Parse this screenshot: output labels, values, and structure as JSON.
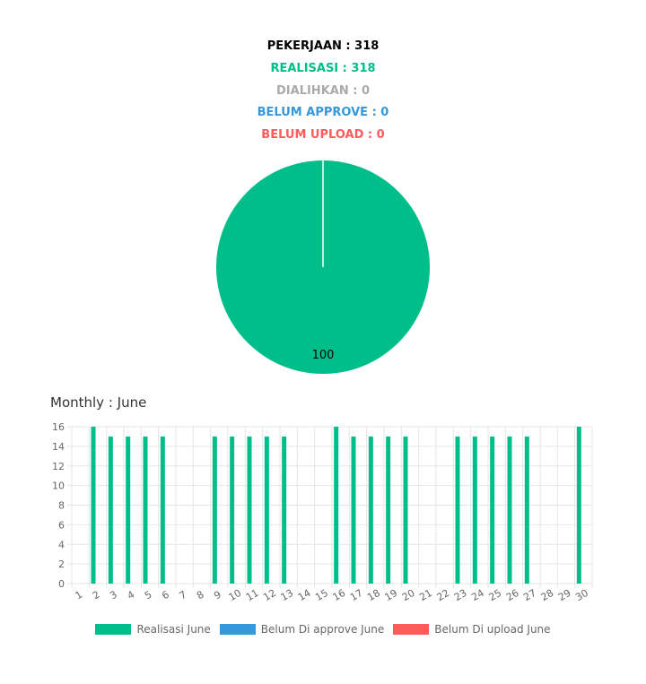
{
  "summary": {
    "pekerjaan": "PEKERJAAN : 318",
    "realisasi": "REALISASI : 318",
    "dialihkan": "DIALIHKAN : 0",
    "belum_approve": "BELUM APPROVE : 0",
    "belum_upload": "BELUM UPLOAD : 0"
  },
  "colors": {
    "pekerjaan": "#000000",
    "realisasi": "#00be8a",
    "dialihkan": "#aaaaaa",
    "belum_approve": "#3498db",
    "belum_upload": "#ff5b5b",
    "grid": "#e6e6e6",
    "tick": "#666666"
  },
  "monthly": {
    "title": "Monthly : June"
  },
  "chart_data": [
    {
      "type": "pie",
      "labels": [
        "Realisasi",
        "Belum Di approve",
        "Belum Di upload"
      ],
      "values": [
        100,
        0,
        0
      ],
      "data_labels": [
        "100"
      ],
      "colors": [
        "#00be8a",
        "#3498db",
        "#ff5b5b"
      ]
    },
    {
      "type": "bar",
      "title": "Monthly : June",
      "categories": [
        "1",
        "2",
        "3",
        "4",
        "5",
        "6",
        "7",
        "8",
        "9",
        "10",
        "11",
        "12",
        "13",
        "14",
        "15",
        "16",
        "17",
        "18",
        "19",
        "20",
        "21",
        "22",
        "23",
        "24",
        "25",
        "26",
        "27",
        "28",
        "29",
        "30"
      ],
      "series": [
        {
          "name": "Realisasi June",
          "color": "#00be8a",
          "values": [
            0,
            16,
            15,
            15,
            15,
            15,
            0,
            0,
            15,
            15,
            15,
            15,
            15,
            0,
            0,
            16,
            15,
            15,
            15,
            15,
            0,
            0,
            15,
            15,
            15,
            15,
            15,
            0,
            0,
            16
          ]
        },
        {
          "name": "Belum Di approve June",
          "color": "#3498db",
          "values": [
            0,
            0,
            0,
            0,
            0,
            0,
            0,
            0,
            0,
            0,
            0,
            0,
            0,
            0,
            0,
            0,
            0,
            0,
            0,
            0,
            0,
            0,
            0,
            0,
            0,
            0,
            0,
            0,
            0,
            0
          ]
        },
        {
          "name": "Belum Di upload June",
          "color": "#ff5b5b",
          "values": [
            0,
            0,
            0,
            0,
            0,
            0,
            0,
            0,
            0,
            0,
            0,
            0,
            0,
            0,
            0,
            0,
            0,
            0,
            0,
            0,
            0,
            0,
            0,
            0,
            0,
            0,
            0,
            0,
            0,
            0
          ]
        }
      ],
      "ylim": [
        0,
        16
      ],
      "yticks": [
        0,
        2,
        4,
        6,
        8,
        10,
        12,
        14,
        16
      ],
      "grid": true,
      "legend": "bottom"
    }
  ]
}
